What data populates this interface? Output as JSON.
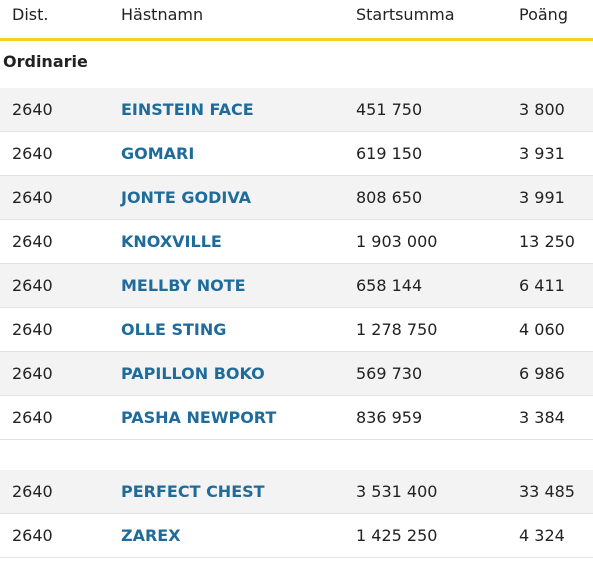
{
  "table": {
    "columns": [
      "Dist.",
      "Hästnamn",
      "Startsumma",
      "Poäng"
    ],
    "section": "Ordinarie",
    "groups": [
      {
        "rows": [
          [
            "2640",
            "EINSTEIN FACE",
            "451 750",
            "3 800"
          ],
          [
            "2640",
            "GOMARI",
            "619 150",
            "3 931"
          ],
          [
            "2640",
            "JONTE GODIVA",
            "808 650",
            "3 991"
          ],
          [
            "2640",
            "KNOXVILLE",
            "1 903 000",
            "13 250"
          ],
          [
            "2640",
            "MELLBY NOTE",
            "658 144",
            "6 411"
          ],
          [
            "2640",
            "OLLE STING",
            "1 278 750",
            "4 060"
          ],
          [
            "2640",
            "PAPILLON BOKO",
            "569 730",
            "6 986"
          ],
          [
            "2640",
            "PASHA NEWPORT",
            "836 959",
            "3 384"
          ]
        ]
      },
      {
        "rows": [
          [
            "2640",
            "PERFECT CHEST",
            "3 531 400",
            "33 485"
          ],
          [
            "2640",
            "ZAREX",
            "1 425 250",
            "4 324"
          ]
        ]
      }
    ]
  }
}
